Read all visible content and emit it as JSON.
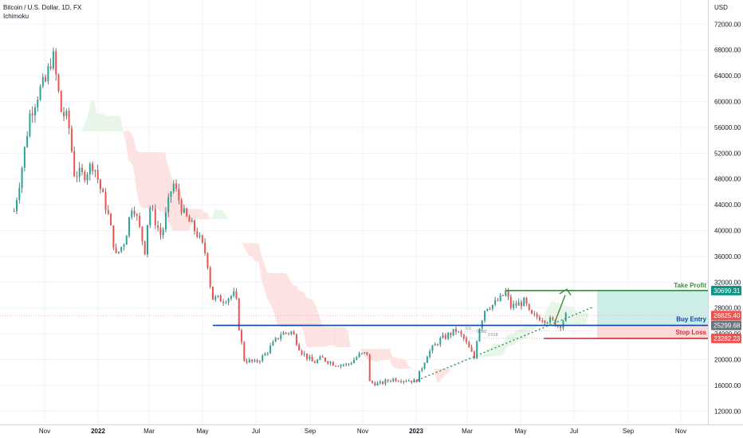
{
  "header": {
    "symbol": "Bitcoin / U.S. Dollar, 1D, FX",
    "indicator": "Ichimoku"
  },
  "colors": {
    "up": "#26a69a",
    "down": "#ef5350",
    "take_profit": "#388e3c",
    "buy_entry": "#0d47a1",
    "stop_loss": "#d32f2f",
    "badge_tp": "#0d9488",
    "badge_current": "#ef5350",
    "badge_entry": "#6b7280",
    "badge_sl": "#ef5350",
    "cloud_bull": "#e8f5e9",
    "cloud_bear": "#fde2e2",
    "target_zone": "#cdeee8",
    "stop_zone": "#fbd9d9"
  },
  "chart_data": {
    "type": "candlestick",
    "y_unit": "USD",
    "ylim": [
      10500,
      74500
    ],
    "y_ticks": [
      "72000.00",
      "68000.00",
      "64000.00",
      "60000.00",
      "56000.00",
      "52000.00",
      "48000.00",
      "44000.00",
      "40000.00",
      "36000.00",
      "32000.00",
      "28000.00",
      "24000.00",
      "20000.00",
      "16000.00",
      "12000.00"
    ],
    "x_ticks": [
      "Nov",
      "2022",
      "Mar",
      "May",
      "Jul",
      "Sep",
      "Nov",
      "2023",
      "Mar",
      "May",
      "Jul",
      "Sep",
      "Nov"
    ],
    "price_path": [
      [
        "2021-09-27",
        43000
      ],
      [
        "2021-10-05",
        49000
      ],
      [
        "2021-10-15",
        58000
      ],
      [
        "2021-10-25",
        61500
      ],
      [
        "2021-11-02",
        63000
      ],
      [
        "2021-11-10",
        67500
      ],
      [
        "2021-11-20",
        58500
      ],
      [
        "2021-11-28",
        57000
      ],
      [
        "2021-12-05",
        49000
      ],
      [
        "2021-12-15",
        48500
      ],
      [
        "2021-12-27",
        50500
      ],
      [
        "2022-01-05",
        46000
      ],
      [
        "2022-01-12",
        43000
      ],
      [
        "2022-01-22",
        36000
      ],
      [
        "2022-02-01",
        38500
      ],
      [
        "2022-02-10",
        44500
      ],
      [
        "2022-02-24",
        37000
      ],
      [
        "2022-03-01",
        44000
      ],
      [
        "2022-03-15",
        39000
      ],
      [
        "2022-03-28",
        47500
      ],
      [
        "2022-04-10",
        42500
      ],
      [
        "2022-04-25",
        39500
      ],
      [
        "2022-05-06",
        36000
      ],
      [
        "2022-05-12",
        29500
      ],
      [
        "2022-05-25",
        29300
      ],
      [
        "2022-06-08",
        30200
      ],
      [
        "2022-06-12",
        25000
      ],
      [
        "2022-06-18",
        20000
      ],
      [
        "2022-06-30",
        19500
      ],
      [
        "2022-07-10",
        20500
      ],
      [
        "2022-07-30",
        24000
      ],
      [
        "2022-08-12",
        24300
      ],
      [
        "2022-08-22",
        21300
      ],
      [
        "2022-09-05",
        19500
      ],
      [
        "2022-09-15",
        20200
      ],
      [
        "2022-09-30",
        19300
      ],
      [
        "2022-10-15",
        19200
      ],
      [
        "2022-10-28",
        20700
      ],
      [
        "2022-11-06",
        21000
      ],
      [
        "2022-11-09",
        16500
      ],
      [
        "2022-11-20",
        16200
      ],
      [
        "2022-12-05",
        17000
      ],
      [
        "2022-12-25",
        16800
      ],
      [
        "2023-01-01",
        16550
      ],
      [
        "2023-01-14",
        20800
      ],
      [
        "2023-01-28",
        23000
      ],
      [
        "2023-02-16",
        24500
      ],
      [
        "2023-02-25",
        23200
      ],
      [
        "2023-03-09",
        20200
      ],
      [
        "2023-03-13",
        24200
      ],
      [
        "2023-03-22",
        28200
      ],
      [
        "2023-03-31",
        28500
      ],
      [
        "2023-04-10",
        29700
      ],
      [
        "2023-04-14",
        30500
      ],
      [
        "2023-04-20",
        28200
      ],
      [
        "2023-04-26",
        28500
      ],
      [
        "2023-05-06",
        29000
      ],
      [
        "2023-05-12",
        26800
      ],
      [
        "2023-05-25",
        26500
      ],
      [
        "2023-06-05",
        26000
      ],
      [
        "2023-06-15",
        25200
      ],
      [
        "2023-06-22",
        26825
      ]
    ],
    "levels": [
      {
        "name": "Take Profit",
        "value": "30699.31"
      },
      {
        "name": "Buy Entry",
        "value": "25299.68"
      },
      {
        "name": "Stop Loss",
        "value": "23282.23"
      }
    ],
    "current_price": "26825.40",
    "fib_labels": [
      "0.5",
      "0.382",
      "0.618"
    ]
  }
}
